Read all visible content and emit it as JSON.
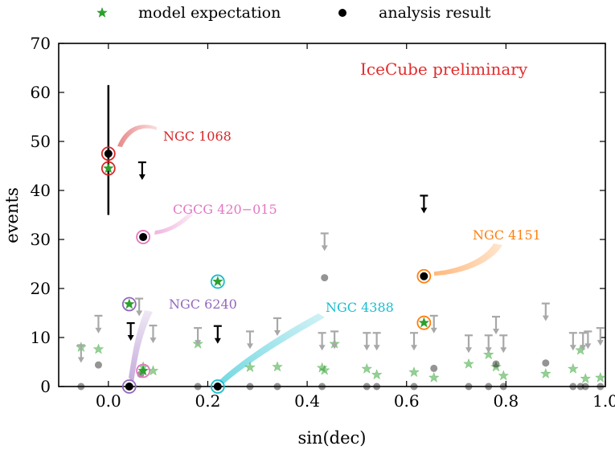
{
  "chart_data": {
    "type": "scatter",
    "xlabel": "sin(dec)",
    "ylabel": "events",
    "xlim": [
      -0.1,
      1.0
    ],
    "ylim": [
      0,
      70
    ],
    "x_ticks": [
      "0.0",
      "0.2",
      "0.4",
      "0.6",
      "0.8",
      "1.0"
    ],
    "x_tick_values": [
      0.0,
      0.2,
      0.4,
      0.6,
      0.8,
      1.0
    ],
    "y_ticks": [
      "0",
      "10",
      "20",
      "30",
      "40",
      "50",
      "60",
      "70"
    ],
    "y_tick_values": [
      0,
      10,
      20,
      30,
      40,
      50,
      60,
      70
    ],
    "annotation_text": "IceCube preliminary",
    "annotation_color": "#e32b2b",
    "legend": {
      "placement": "top, outside plot",
      "entries": [
        {
          "label": "model expectation",
          "marker": "star",
          "color": "#2ca02c"
        },
        {
          "label": "analysis result",
          "marker": "circle",
          "color": "#000000"
        }
      ]
    },
    "highlighted_sources": [
      {
        "name": "NGC 1068",
        "color": "#d62728",
        "x": 0.0,
        "result": 47.5,
        "expectation": 44.5,
        "error_low": 35,
        "error_high": 61.5
      },
      {
        "name": "CGCG 420−015",
        "color": "#e377c2",
        "x": 0.07,
        "result": 30.5
      },
      {
        "name": "NGC 4151",
        "color": "#ff7f0e",
        "x": 0.635,
        "result": 22.5,
        "expectation": 13.0
      },
      {
        "name": "NGC 6240",
        "color": "#9467bd",
        "x": 0.042,
        "result": 0.0,
        "expectation": 16.8
      },
      {
        "name": "NGC 4388",
        "color": "#17becf",
        "x": 0.22,
        "result": 0.0,
        "expectation": 21.4
      }
    ],
    "extra_highlight_expectations": [
      {
        "x": 0.07,
        "expectation": 3.2,
        "color": "#e377c2"
      }
    ],
    "upper_limits_black": [
      {
        "x": 0.068,
        "value": 42.3
      },
      {
        "x": 0.045,
        "value": 9.5
      },
      {
        "x": 0.22,
        "value": 8.9
      },
      {
        "x": 0.635,
        "value": 35.5
      }
    ],
    "upper_limits_gray": [
      {
        "x": -0.055,
        "value": 5.0
      },
      {
        "x": -0.02,
        "value": 11.0
      },
      {
        "x": 0.062,
        "value": 14.5
      },
      {
        "x": 0.09,
        "value": 9.0
      },
      {
        "x": 0.18,
        "value": 8.5
      },
      {
        "x": 0.285,
        "value": 7.8
      },
      {
        "x": 0.34,
        "value": 10.5
      },
      {
        "x": 0.435,
        "value": 27.8
      },
      {
        "x": 0.43,
        "value": 7.5
      },
      {
        "x": 0.455,
        "value": 7.8
      },
      {
        "x": 0.52,
        "value": 7.5
      },
      {
        "x": 0.54,
        "value": 7.5
      },
      {
        "x": 0.615,
        "value": 7.5
      },
      {
        "x": 0.655,
        "value": 11.0
      },
      {
        "x": 0.725,
        "value": 7.0
      },
      {
        "x": 0.765,
        "value": 7.0
      },
      {
        "x": 0.78,
        "value": 10.8
      },
      {
        "x": 0.795,
        "value": 7.0
      },
      {
        "x": 0.88,
        "value": 13.5
      },
      {
        "x": 0.935,
        "value": 7.5
      },
      {
        "x": 0.955,
        "value": 7.5
      },
      {
        "x": 0.965,
        "value": 7.8
      },
      {
        "x": 0.99,
        "value": 8.5
      }
    ],
    "results_gray": [
      {
        "x": -0.055,
        "value": 0.0
      },
      {
        "x": -0.02,
        "value": 4.4
      },
      {
        "x": 0.065,
        "value": 2.5
      },
      {
        "x": 0.18,
        "value": 0.0
      },
      {
        "x": 0.285,
        "value": 0.0
      },
      {
        "x": 0.34,
        "value": 0.0
      },
      {
        "x": 0.435,
        "value": 22.2
      },
      {
        "x": 0.43,
        "value": 0.0
      },
      {
        "x": 0.52,
        "value": 0.0
      },
      {
        "x": 0.54,
        "value": 0.0
      },
      {
        "x": 0.615,
        "value": 0.0
      },
      {
        "x": 0.655,
        "value": 3.7
      },
      {
        "x": 0.725,
        "value": 0.0
      },
      {
        "x": 0.765,
        "value": 0.0
      },
      {
        "x": 0.78,
        "value": 4.6
      },
      {
        "x": 0.795,
        "value": 0.0
      },
      {
        "x": 0.88,
        "value": 4.8
      },
      {
        "x": 0.935,
        "value": 0.0
      },
      {
        "x": 0.95,
        "value": 0.0
      },
      {
        "x": 0.96,
        "value": 0.0
      },
      {
        "x": 0.99,
        "value": 0.0
      }
    ],
    "expectations_faint": [
      {
        "x": -0.055,
        "value": 8.0
      },
      {
        "x": -0.02,
        "value": 7.6
      },
      {
        "x": 0.07,
        "value": 4.0
      },
      {
        "x": 0.09,
        "value": 3.2
      },
      {
        "x": 0.18,
        "value": 8.7
      },
      {
        "x": 0.285,
        "value": 3.9
      },
      {
        "x": 0.34,
        "value": 4.0
      },
      {
        "x": 0.43,
        "value": 3.8
      },
      {
        "x": 0.435,
        "value": 3.3
      },
      {
        "x": 0.455,
        "value": 8.7
      },
      {
        "x": 0.52,
        "value": 3.6
      },
      {
        "x": 0.54,
        "value": 2.4
      },
      {
        "x": 0.615,
        "value": 2.9
      },
      {
        "x": 0.655,
        "value": 1.8
      },
      {
        "x": 0.725,
        "value": 4.6
      },
      {
        "x": 0.765,
        "value": 6.5
      },
      {
        "x": 0.78,
        "value": 4.0
      },
      {
        "x": 0.795,
        "value": 2.2
      },
      {
        "x": 0.88,
        "value": 2.6
      },
      {
        "x": 0.935,
        "value": 3.6
      },
      {
        "x": 0.95,
        "value": 7.4
      },
      {
        "x": 0.96,
        "value": 1.6
      },
      {
        "x": 0.99,
        "value": 1.8
      }
    ]
  }
}
